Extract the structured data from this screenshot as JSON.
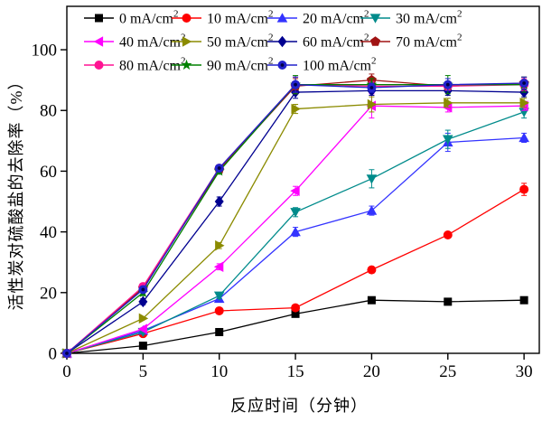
{
  "chart_data": {
    "type": "line",
    "title": "",
    "xlabel": "反应时间（分钟）",
    "ylabel": "活性炭对硫酸盐的去除率（%）",
    "x": [
      0,
      5,
      10,
      15,
      20,
      25,
      30
    ],
    "xlim": [
      0,
      31
    ],
    "ylim": [
      0,
      114.3
    ],
    "xticks": [
      0,
      5,
      10,
      15,
      20,
      25,
      30
    ],
    "yticks": [
      0,
      20,
      40,
      60,
      80,
      100
    ],
    "grid": false,
    "legend_position": "top-inside",
    "legend_rows": [
      [
        0,
        1,
        2,
        3
      ],
      [
        4,
        5,
        6,
        7
      ],
      [
        8,
        9,
        10
      ]
    ],
    "series": [
      {
        "name": "0 mA/cm²",
        "marker": "square",
        "color": "#000000",
        "values": [
          0,
          2.5,
          7,
          13,
          17.5,
          17,
          17.5
        ],
        "err": [
          0,
          0,
          0,
          0,
          0,
          0,
          0
        ]
      },
      {
        "name": "10 mA/cm²",
        "marker": "circle",
        "color": "#FF0000",
        "values": [
          0,
          6.5,
          14,
          15,
          27.5,
          39,
          54
        ],
        "err": [
          0,
          0,
          0,
          0,
          0,
          0,
          2
        ]
      },
      {
        "name": "20 mA/cm²",
        "marker": "triangle-up",
        "color": "#3333FF",
        "values": [
          0,
          7.5,
          18,
          40,
          47,
          69.5,
          71
        ],
        "err": [
          0,
          0,
          0,
          1.5,
          1.5,
          3,
          1.5
        ]
      },
      {
        "name": "30 mA/cm²",
        "marker": "triangle-down",
        "color": "#008B8B",
        "values": [
          0,
          7,
          19,
          46.5,
          57.5,
          70.5,
          79.5
        ],
        "err": [
          0,
          0,
          1,
          1.5,
          3,
          3,
          2
        ]
      },
      {
        "name": "40 mA/cm²",
        "marker": "triangle-left",
        "color": "#FF00FF",
        "values": [
          0,
          8,
          28.5,
          53.5,
          81.5,
          81,
          81.5
        ],
        "err": [
          0,
          0,
          1,
          1.5,
          4,
          1.5,
          1.5
        ]
      },
      {
        "name": "50 mA/cm²",
        "marker": "triangle-right",
        "color": "#8B8B00",
        "values": [
          0,
          11.5,
          35.5,
          80.5,
          82,
          82.5,
          82.5
        ],
        "err": [
          0,
          0,
          1,
          1.5,
          2.5,
          1.5,
          1.5
        ]
      },
      {
        "name": "60 mA/cm²",
        "marker": "diamond",
        "color": "#000090",
        "values": [
          0,
          17,
          50,
          86,
          86.5,
          86.5,
          86
        ],
        "err": [
          0,
          1,
          1.5,
          2,
          1.5,
          1.5,
          1.5
        ]
      },
      {
        "name": "70 mA/cm²",
        "marker": "pentagon",
        "color": "#A01313",
        "values": [
          0,
          21.5,
          60.5,
          88,
          90,
          88,
          89
        ],
        "err": [
          0,
          1,
          1,
          2.5,
          2,
          1.5,
          2
        ]
      },
      {
        "name": "80 mA/cm²",
        "marker": "circle",
        "color": "#FF1493",
        "values": [
          0,
          22,
          61,
          88.5,
          88,
          88,
          88.5
        ],
        "err": [
          0,
          1,
          1,
          2.5,
          1.5,
          1.5,
          2
        ]
      },
      {
        "name": "90 mA/cm²",
        "marker": "star",
        "color": "#008000",
        "values": [
          0,
          20,
          60,
          88.5,
          88.5,
          88.5,
          88.5
        ],
        "err": [
          0,
          1,
          1,
          3,
          2,
          3,
          2.5
        ]
      },
      {
        "name": "100 mA/cm²",
        "marker": "circle-dot",
        "color": "#2222CC",
        "values": [
          0,
          21,
          61,
          88.5,
          87.5,
          88.5,
          89
        ],
        "err": [
          0,
          1,
          1,
          2.5,
          1.5,
          2,
          2
        ]
      }
    ]
  }
}
